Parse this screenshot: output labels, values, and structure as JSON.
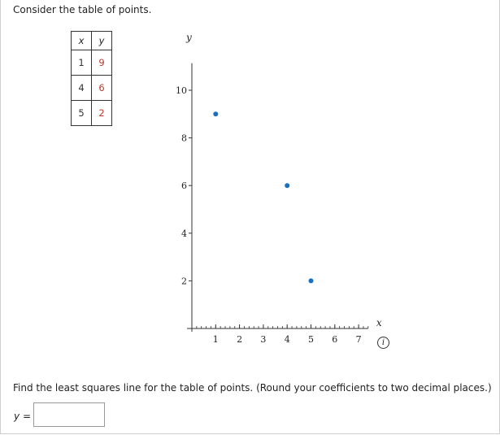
{
  "intro_text": "Consider the table of points.",
  "table": {
    "headers": [
      "x",
      "y"
    ],
    "rows": [
      {
        "x": "1",
        "y": "9"
      },
      {
        "x": "4",
        "y": "6"
      },
      {
        "x": "5",
        "y": "2"
      }
    ]
  },
  "chart_data": {
    "type": "scatter",
    "xlabel": "x",
    "ylabel": "y",
    "xlim": [
      0,
      7.4
    ],
    "ylim": [
      0,
      11
    ],
    "x_ticks": [
      "1",
      "2",
      "3",
      "4",
      "5",
      "6",
      "7"
    ],
    "y_ticks": [
      "2",
      "4",
      "6",
      "8",
      "10"
    ],
    "points": [
      {
        "x": 1,
        "y": 9
      },
      {
        "x": 4,
        "y": 6
      },
      {
        "x": 5,
        "y": 2
      }
    ],
    "point_color": "#1a6fc4"
  },
  "info_icon": "info-icon",
  "question_text": "Find the least squares line for the table of points. (Round your coefficients to two decimal places.)",
  "answer": {
    "label_var": "y",
    "label_eq": "=",
    "value": ""
  }
}
